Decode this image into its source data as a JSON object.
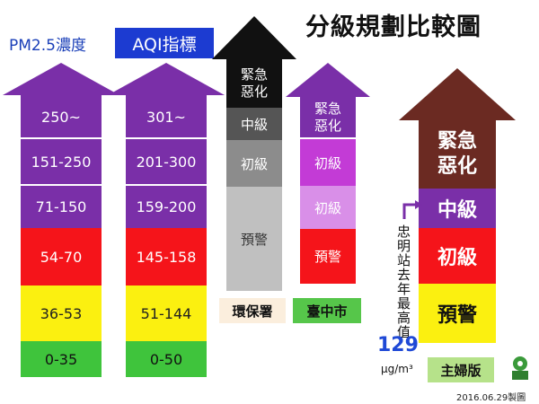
{
  "title": "分級規劃比較圖",
  "pm_header": "PM2.5濃度",
  "aqi_header": "AQI指標",
  "pm_levels": [
    "250~",
    "151-250",
    "71-150",
    "54-70",
    "36-53",
    "0-35"
  ],
  "aqi_levels": [
    "301~",
    "201-300",
    "159-200",
    "145-158",
    "51-144",
    "0-50"
  ],
  "epa_levels": [
    "緊急惡化",
    "中級",
    "初級",
    "預警"
  ],
  "epa_label": "環保署",
  "tc_levels": [
    "緊急惡化",
    "初級",
    "初級",
    "預警"
  ],
  "tc_label": "臺中市",
  "mom_levels": [
    "緊急惡化",
    "中級",
    "初級",
    "預警"
  ],
  "mom_label": "主婦版",
  "note": "忠明站去年最高值",
  "max_value": "129",
  "unit": "μg/m³",
  "date": "2016.06.29製圖",
  "colors": {
    "purple": "#7a2fa8",
    "red": "#f5141a",
    "yellow": "#fbf010",
    "green": "#3fc43c",
    "black": "#111111",
    "dark_gray": "#555555",
    "gray": "#8c8c8c",
    "light_gray": "#c0c0c0",
    "magenta": "#c33bd6",
    "light_purple": "#d98fe8",
    "maroon": "#6b2a22",
    "blue_text": "#1f49d6"
  }
}
